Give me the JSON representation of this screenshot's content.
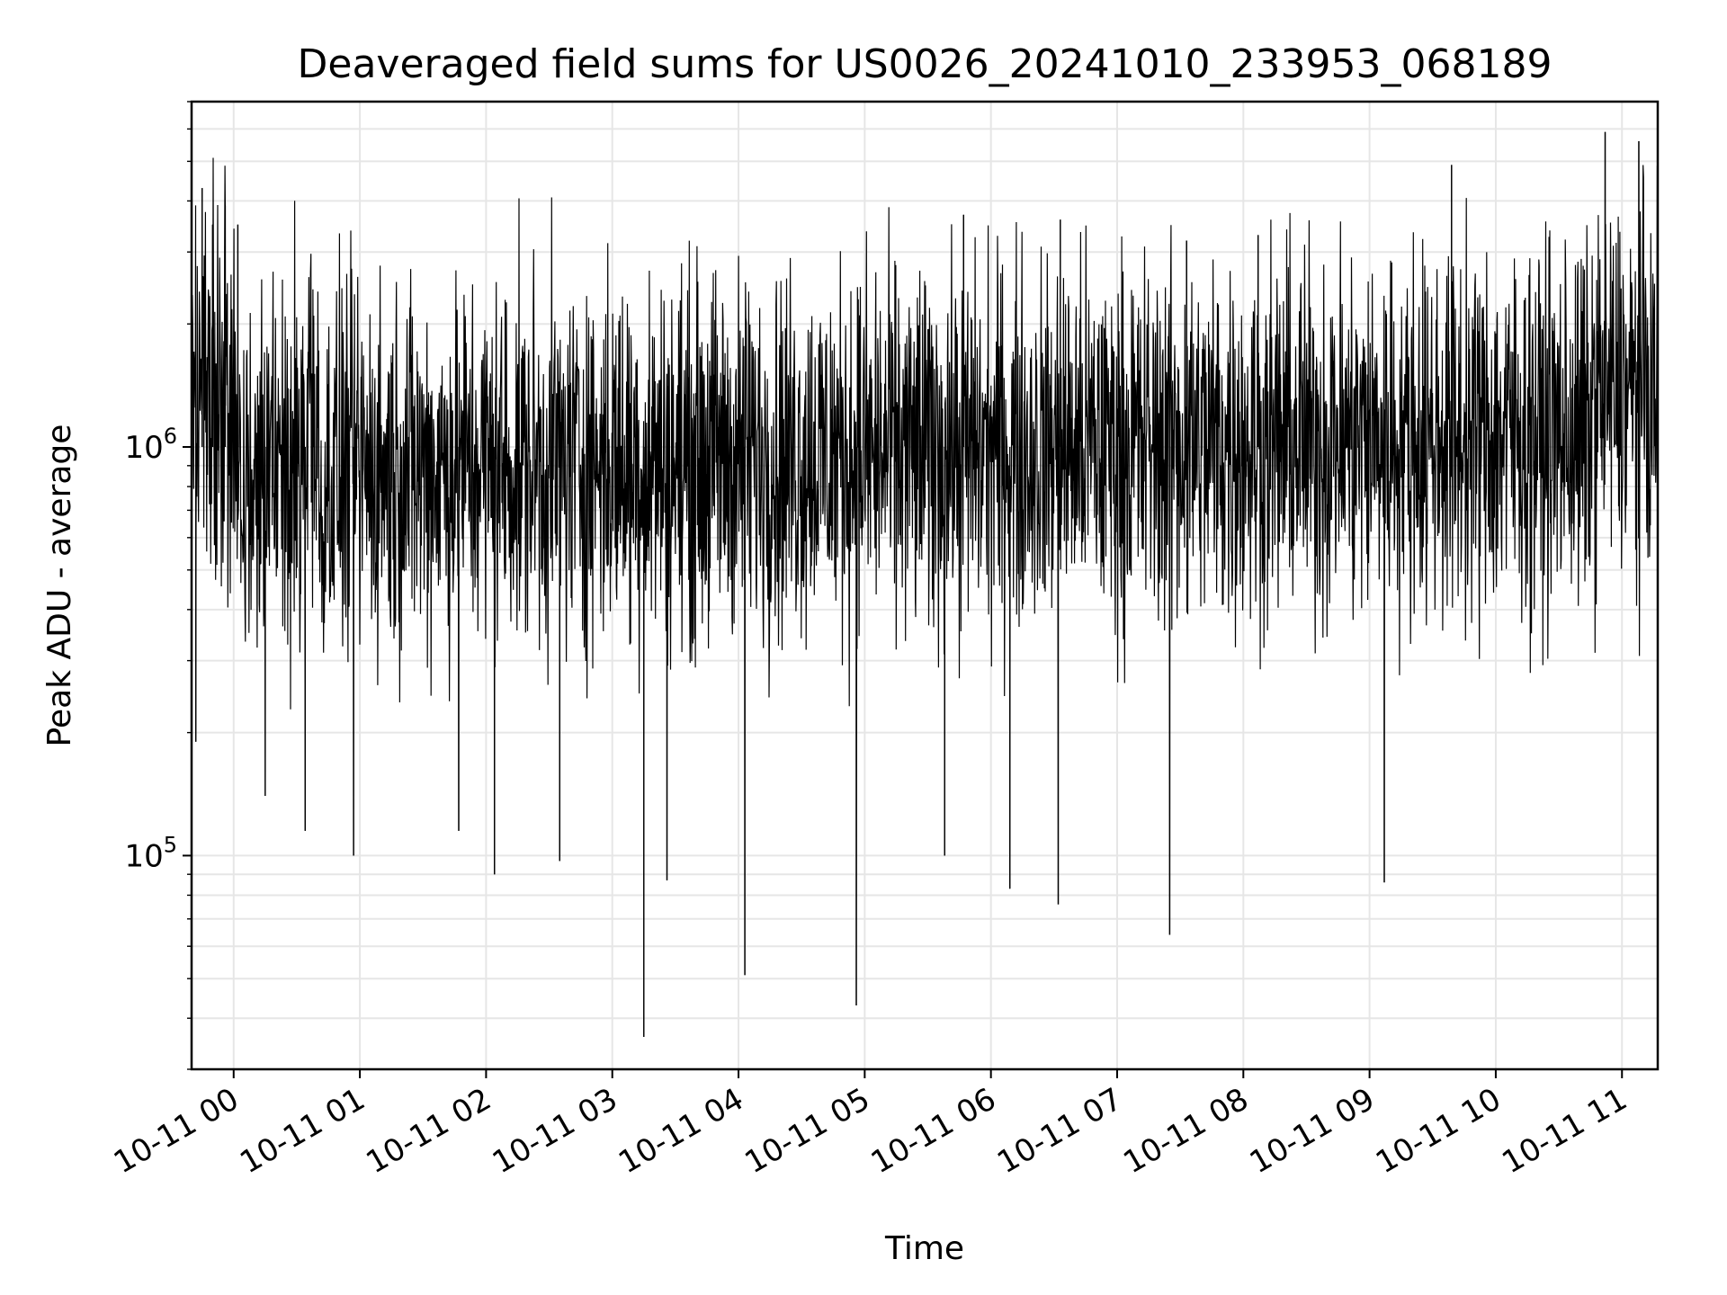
{
  "chart_data": {
    "type": "line",
    "title": "Deaveraged field sums for US0026_20241010_233953_068189",
    "xlabel": "Time",
    "ylabel": "Peak ADU - average",
    "yscale": "log",
    "xlim": [
      "2024-10-10T23:40:00",
      "2024-10-11T11:17:00"
    ],
    "ylim": [
      30000,
      7000000
    ],
    "x_ticks": [
      {
        "t": "2024-10-11T00:00:00",
        "label": "10-11 00"
      },
      {
        "t": "2024-10-11T01:00:00",
        "label": "10-11 01"
      },
      {
        "t": "2024-10-11T02:00:00",
        "label": "10-11 02"
      },
      {
        "t": "2024-10-11T03:00:00",
        "label": "10-11 03"
      },
      {
        "t": "2024-10-11T04:00:00",
        "label": "10-11 04"
      },
      {
        "t": "2024-10-11T05:00:00",
        "label": "10-11 05"
      },
      {
        "t": "2024-10-11T06:00:00",
        "label": "10-11 06"
      },
      {
        "t": "2024-10-11T07:00:00",
        "label": "10-11 07"
      },
      {
        "t": "2024-10-11T08:00:00",
        "label": "10-11 08"
      },
      {
        "t": "2024-10-11T09:00:00",
        "label": "10-11 09"
      },
      {
        "t": "2024-10-11T10:00:00",
        "label": "10-11 10"
      },
      {
        "t": "2024-10-11T11:00:00",
        "label": "10-11 11"
      }
    ],
    "y_ticks": [
      {
        "value": 100000,
        "base": "10",
        "exp": "5"
      },
      {
        "value": 1000000,
        "base": "10",
        "exp": "6"
      }
    ],
    "grid": true,
    "line_color": "#000000",
    "series": [
      {
        "name": "",
        "note": "Dense noisy series (thousands of samples); typical level ~1e6, envelope between ~2e5 and ~3e6, with isolated spikes listed below.",
        "points": [
          [
            "2024-10-10T23:40:00",
            1500000
          ],
          [
            "2024-10-10T23:42:00",
            190000
          ],
          [
            "2024-10-10T23:45:00",
            4300000
          ],
          [
            "2024-10-10T23:50:00",
            3500000
          ],
          [
            "2024-10-10T23:56:00",
            3900000
          ],
          [
            "2024-10-11T00:02:00",
            3500000
          ],
          [
            "2024-10-11T00:15:00",
            140000
          ],
          [
            "2024-10-11T00:34:00",
            115000
          ],
          [
            "2024-10-11T00:57:00",
            100000
          ],
          [
            "2024-10-11T01:47:00",
            115000
          ],
          [
            "2024-10-11T02:04:00",
            90000
          ],
          [
            "2024-10-11T02:35:00",
            97000
          ],
          [
            "2024-10-11T03:15:00",
            36000
          ],
          [
            "2024-10-11T03:26:00",
            87000
          ],
          [
            "2024-10-11T04:03:00",
            51000
          ],
          [
            "2024-10-11T04:56:00",
            43000
          ],
          [
            "2024-10-11T05:38:00",
            100000
          ],
          [
            "2024-10-11T05:47:00",
            3700000
          ],
          [
            "2024-10-11T06:09:00",
            83000
          ],
          [
            "2024-10-11T06:32:00",
            76000
          ],
          [
            "2024-10-11T06:33:00",
            3600000
          ],
          [
            "2024-10-11T07:25:00",
            64000
          ],
          [
            "2024-10-11T07:33:00",
            3200000
          ],
          [
            "2024-10-11T08:07:00",
            3300000
          ],
          [
            "2024-10-11T09:07:00",
            86000
          ],
          [
            "2024-10-11T09:39:00",
            4900000
          ],
          [
            "2024-10-11T10:52:00",
            5900000
          ],
          [
            "2024-10-11T11:08:00",
            5600000
          ],
          [
            "2024-10-11T11:17:00",
            1600000
          ]
        ]
      }
    ]
  }
}
